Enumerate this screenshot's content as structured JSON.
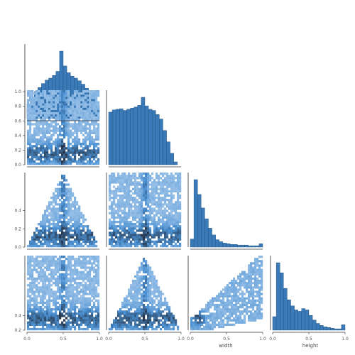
{
  "chart_data": {
    "type": "pairplot",
    "variables": [
      "",
      "",
      "width",
      "height"
    ],
    "colors": {
      "hist_fill": "#3a7ab8",
      "hist_edge": "#1f4e79",
      "density_light": "#d6e6f8",
      "density_dark": "#27364b"
    },
    "diagonal": [
      {
        "type": "bar",
        "bins": [
          0,
          0.05,
          0.1,
          0.15,
          0.2,
          0.25,
          0.3,
          0.35,
          0.4,
          0.45,
          0.5,
          0.55,
          0.6,
          0.65,
          0.7,
          0.75,
          0.8,
          0.85,
          0.9,
          0.95,
          1.0
        ],
        "values": [
          22,
          32,
          40,
          46,
          52,
          57,
          60,
          64,
          70,
          100,
          78,
          68,
          63,
          60,
          56,
          51,
          45,
          38,
          30,
          20
        ]
      },
      {
        "type": "bar",
        "bins": [
          0,
          0.05,
          0.1,
          0.15,
          0.2,
          0.25,
          0.3,
          0.35,
          0.4,
          0.45,
          0.5,
          0.55,
          0.6,
          0.65,
          0.7,
          0.75,
          0.8,
          0.85,
          0.9,
          0.95,
          1.0
        ],
        "values": [
          92,
          96,
          97,
          98,
          95,
          97,
          99,
          101,
          104,
          118,
          103,
          97,
          95,
          88,
          80,
          60,
          40,
          20,
          5,
          0
        ]
      },
      {
        "type": "bar",
        "bins": [
          0,
          0.05,
          0.1,
          0.15,
          0.2,
          0.25,
          0.3,
          0.35,
          0.4,
          0.45,
          0.5,
          0.55,
          0.6,
          0.65,
          0.7,
          0.75,
          0.8,
          0.85,
          0.9,
          0.95,
          1.0
        ],
        "values": [
          12,
          100,
          78,
          58,
          42,
          28,
          18,
          11,
          8,
          6,
          5,
          4,
          4,
          3,
          3,
          3,
          2,
          2,
          2,
          5
        ]
      },
      {
        "type": "bar",
        "bins": [
          0,
          0.05,
          0.1,
          0.15,
          0.2,
          0.25,
          0.3,
          0.35,
          0.4,
          0.45,
          0.5,
          0.55,
          0.6,
          0.65,
          0.7,
          0.75,
          0.8,
          0.85,
          0.9,
          0.95,
          1.0
        ],
        "values": [
          20,
          100,
          85,
          62,
          45,
          36,
          30,
          28,
          32,
          30,
          22,
          15,
          10,
          7,
          5,
          4,
          3,
          2,
          2,
          8
        ]
      }
    ],
    "ticks": {
      "row_y": [
        [
          "0.0",
          "0.2",
          "0.4",
          "0.6",
          "0.8",
          "1.0"
        ],
        [
          "0.0",
          "0.2",
          "0.4"
        ],
        [
          "0.2",
          "0.4"
        ]
      ],
      "col_x": [
        [
          "0.0",
          "0.5",
          "1.0"
        ],
        [
          "0.0",
          "0.5",
          "1.0"
        ],
        [
          "0.0",
          "0.5",
          "1.0"
        ],
        [
          "0.0",
          "0.5",
          "1.0"
        ]
      ]
    }
  }
}
